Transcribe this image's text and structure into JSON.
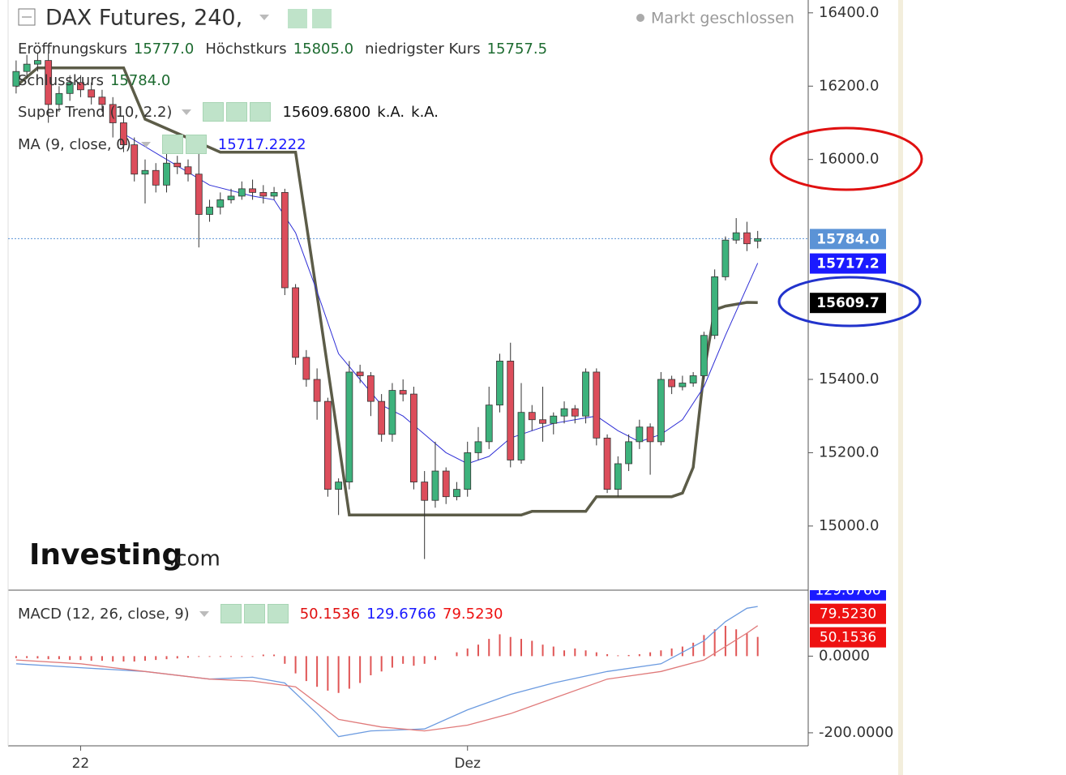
{
  "chart_data": [
    {
      "type": "candlestick",
      "title": "DAX Futures, 240,",
      "status": "Markt geschlossen",
      "legend": [
        {
          "name": "Eröffnungskurs",
          "label": "15777.0"
        },
        {
          "name": "Höchstkurs",
          "label": "15805.0"
        },
        {
          "name": "niedrigster Kurs",
          "label": "15757.5"
        },
        {
          "name": "Schlusskurs",
          "label": "15784.0"
        }
      ],
      "open": [
        16200,
        16240,
        16260,
        16270,
        16150,
        16180,
        16210,
        16190,
        16170,
        16150,
        16100,
        16040,
        15960,
        15970,
        15930,
        15990,
        15980,
        15960,
        15850,
        15870,
        15890,
        15900,
        15920,
        15910,
        15900,
        15910,
        15650,
        15460,
        15400,
        15340,
        15100,
        15120,
        15420,
        15410,
        15340,
        15250,
        15370,
        15360,
        15120,
        15070,
        15150,
        15080,
        15100,
        15200,
        15230,
        15330,
        15450,
        15180,
        15310,
        15290,
        15280,
        15300,
        15320,
        15300,
        15420,
        15240,
        15100,
        15170,
        15230,
        15270,
        15230,
        15400,
        15380,
        15390,
        15410,
        15520,
        15680,
        15780,
        15800,
        15777
      ],
      "high": [
        16270,
        16285,
        16290,
        16290,
        16200,
        16230,
        16230,
        16210,
        16190,
        16170,
        16120,
        16060,
        16000,
        15990,
        16020,
        16010,
        16000,
        16020,
        15890,
        15910,
        15920,
        15940,
        15945,
        15930,
        15925,
        15920,
        15660,
        15480,
        15430,
        15350,
        15130,
        15450,
        15440,
        15420,
        15360,
        15390,
        15400,
        15380,
        15150,
        15230,
        15160,
        15120,
        15230,
        15270,
        15380,
        15470,
        15500,
        15390,
        15330,
        15380,
        15310,
        15340,
        15330,
        15430,
        15430,
        15250,
        15190,
        15250,
        15290,
        15280,
        15420,
        15410,
        15410,
        15420,
        15530,
        15700,
        15790,
        15840,
        15830,
        15805
      ],
      "low": [
        16180,
        16220,
        16240,
        16100,
        16130,
        16160,
        16170,
        16150,
        16130,
        16060,
        16020,
        15940,
        15880,
        15910,
        15910,
        15960,
        15940,
        15760,
        15830,
        15850,
        15880,
        15890,
        15890,
        15880,
        15890,
        15630,
        15440,
        15380,
        15290,
        15080,
        15030,
        15100,
        15390,
        15300,
        15230,
        15230,
        15340,
        15100,
        14910,
        15050,
        15060,
        15070,
        15080,
        15180,
        15210,
        15310,
        15160,
        15170,
        15260,
        15230,
        15250,
        15280,
        15280,
        15280,
        15220,
        15090,
        15080,
        15150,
        15210,
        15140,
        15220,
        15360,
        15370,
        15380,
        15400,
        15510,
        15670,
        15770,
        15750,
        15757.5
      ],
      "close": [
        16240,
        16260,
        16270,
        16150,
        16180,
        16210,
        16190,
        16170,
        16150,
        16100,
        16040,
        15960,
        15970,
        15930,
        15990,
        15980,
        15960,
        15850,
        15870,
        15890,
        15900,
        15920,
        15910,
        15900,
        15910,
        15650,
        15460,
        15400,
        15340,
        15100,
        15120,
        15420,
        15410,
        15340,
        15250,
        15370,
        15360,
        15120,
        15070,
        15150,
        15080,
        15100,
        15200,
        15230,
        15330,
        15450,
        15180,
        15310,
        15290,
        15280,
        15300,
        15320,
        15300,
        15420,
        15240,
        15100,
        15170,
        15230,
        15270,
        15230,
        15400,
        15380,
        15390,
        15410,
        15520,
        15680,
        15780,
        15800,
        15770,
        15784
      ],
      "up_color": "#3db27c",
      "down_color": "#dc4d5b",
      "last_label": "15784.0",
      "last_color": "#5b93d6",
      "lines": [
        {
          "name": "Super Trend (10, 2.2)",
          "color": "#5c5c48",
          "x": [
            0,
            2,
            3,
            10,
            12,
            19,
            26,
            28,
            31,
            47,
            48,
            53,
            54,
            61,
            62,
            63,
            64,
            65,
            66,
            68,
            69
          ],
          "values": [
            16200,
            16250,
            16250,
            16250,
            16110,
            16020,
            16020,
            15630,
            15030,
            15030,
            15040,
            15040,
            15080,
            15080,
            15090,
            15160,
            15420,
            15590,
            15600,
            15610,
            15609.68
          ],
          "legend_values": [
            "15609.6800",
            "k.A.",
            "k.A."
          ],
          "tag": "15609.7",
          "tag_color": "#000000"
        },
        {
          "name": "MA (9, close, 0)",
          "color": "#2f2fd6",
          "x": [
            10,
            14,
            18,
            22,
            24,
            26,
            28,
            30,
            32,
            34,
            36,
            38,
            40,
            42,
            44,
            46,
            48,
            50,
            52,
            54,
            56,
            58,
            60,
            62,
            64,
            66,
            69
          ],
          "values": [
            16070,
            16000,
            15930,
            15900,
            15890,
            15800,
            15640,
            15470,
            15400,
            15330,
            15300,
            15250,
            15200,
            15170,
            15190,
            15240,
            15260,
            15280,
            15290,
            15300,
            15260,
            15230,
            15250,
            15290,
            15380,
            15520,
            15717.22
          ],
          "legend_values": [
            "15717.2222"
          ],
          "tag": "15717.2",
          "tag_color": "#1a1aff"
        }
      ],
      "ylim": [
        14825,
        16435
      ],
      "yticks": [
        {
          "value": 15000,
          "label": "15000.0"
        },
        {
          "value": 15200,
          "label": "15200.0"
        },
        {
          "value": 15400,
          "label": "15400.0"
        },
        {
          "value": 16000,
          "label": "16000.0"
        },
        {
          "value": 16200,
          "label": "16200.0"
        },
        {
          "value": 16400,
          "label": "16400.0"
        }
      ],
      "xlim": [
        -1.5,
        73.7
      ],
      "xticks": [
        {
          "value": 6,
          "label": "22"
        },
        {
          "value": 42,
          "label": "Dez"
        }
      ]
    },
    {
      "type": "macd",
      "title": "MACD (12, 26, close, 9)",
      "histogram": {
        "color": "#e05555",
        "values": [
          -5,
          -5,
          -6,
          -8,
          -8,
          -10,
          -10,
          -12,
          -12,
          -14,
          -14,
          -14,
          -12,
          -10,
          -8,
          -6,
          -4,
          -2,
          -2,
          -2,
          -2,
          -2,
          -2,
          4,
          4,
          -20,
          -45,
          -65,
          -80,
          -90,
          -96,
          -85,
          -70,
          -50,
          -40,
          -30,
          -20,
          -25,
          -20,
          -10,
          0,
          10,
          20,
          30,
          45,
          57,
          50,
          45,
          40,
          30,
          25,
          15,
          20,
          15,
          10,
          5,
          2,
          3,
          5,
          10,
          15,
          20,
          25,
          35,
          55,
          70,
          79,
          70,
          60,
          50.1536
        ],
        "legend_value": "50.1536",
        "tag": "50.1536",
        "tag_color": "#ee1111"
      },
      "series": [
        {
          "color": "#6c9be0",
          "x": [
            0,
            6,
            12,
            18,
            22,
            25,
            28,
            30,
            33,
            38,
            42,
            46,
            50,
            55,
            60,
            64,
            66,
            68,
            69
          ],
          "values": [
            -20,
            -30,
            -40,
            -60,
            -55,
            -70,
            -150,
            -210,
            -195,
            -190,
            -140,
            -100,
            -70,
            -40,
            -20,
            40,
            90,
            125,
            129.6766
          ],
          "legend_value": "129.6766",
          "tag": "129.6766",
          "tag_color": "#1a1aff"
        },
        {
          "color": "#e07a7a",
          "x": [
            0,
            6,
            12,
            18,
            22,
            26,
            30,
            34,
            38,
            42,
            46,
            50,
            55,
            60,
            64,
            66,
            68,
            69
          ],
          "values": [
            -10,
            -20,
            -40,
            -60,
            -65,
            -80,
            -165,
            -185,
            -195,
            -180,
            -150,
            -110,
            -60,
            -40,
            -10,
            25,
            60,
            79.523
          ],
          "legend_value": "79.5230",
          "tag": "79.5230",
          "tag_color": "#ee1111"
        }
      ],
      "ylim": [
        -234,
        170
      ],
      "yticks": [
        {
          "value": -200,
          "label": "-200.0000"
        },
        {
          "value": 0,
          "label": "0.0000"
        }
      ]
    }
  ],
  "watermark": {
    "brand": "Investing",
    "suffix": ".com"
  }
}
